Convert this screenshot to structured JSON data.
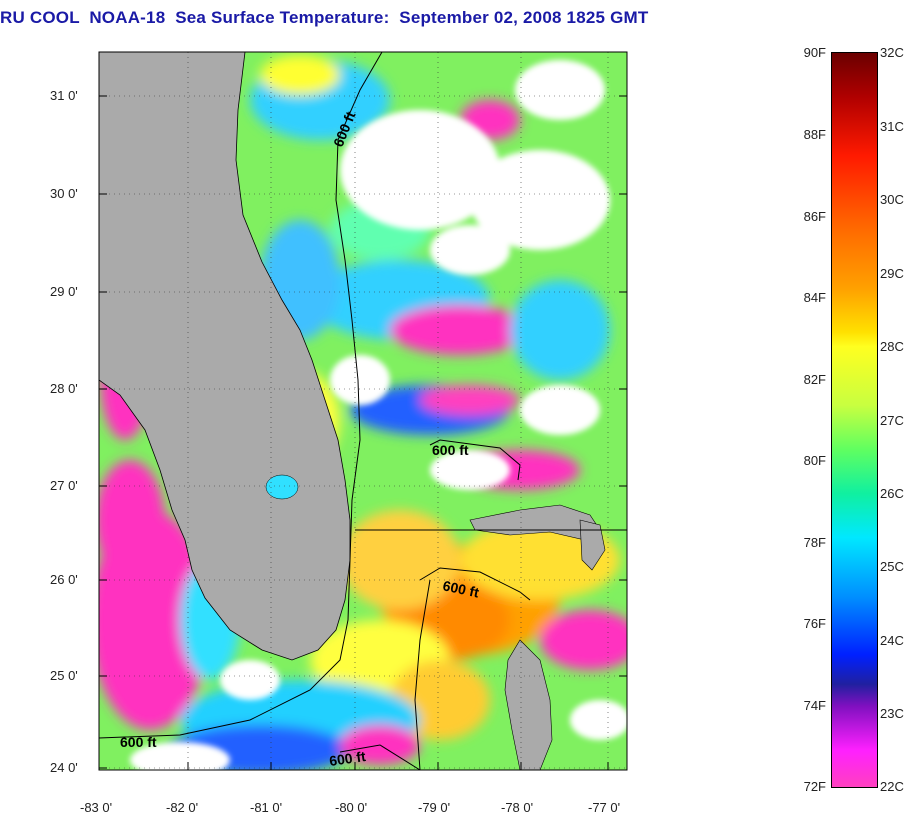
{
  "title": "RU COOL  NOAA-18  Sea Surface Temperature:  September 02, 2008 1825 GMT",
  "map": {
    "lat_labels": [
      "31 0'",
      "30 0'",
      "29 0'",
      "28 0'",
      "27 0'",
      "26 0'",
      "25 0'",
      "24 0'"
    ],
    "lon_labels": [
      "-83 0'",
      "-82 0'",
      "-81 0'",
      "-80 0'",
      "-79 0'",
      "-78 0'",
      "-77 0'"
    ],
    "contour_labels": [
      "600 ft",
      "600 ft",
      "600 ft",
      "600 ft",
      "600 ft"
    ],
    "colors": {
      "land": "#aaaaaa",
      "cloud": "#ffffff",
      "cold": "#ff20c0",
      "mid": "#20e8ff",
      "warm": "#ffa000"
    }
  },
  "colorbar": {
    "fahrenheit": [
      "90F",
      "88F",
      "86F",
      "84F",
      "82F",
      "80F",
      "78F",
      "76F",
      "74F",
      "72F"
    ],
    "celsius": [
      "32C",
      "31C",
      "30C",
      "29C",
      "28C",
      "27C",
      "26C",
      "25C",
      "24C",
      "23C",
      "22C"
    ]
  }
}
